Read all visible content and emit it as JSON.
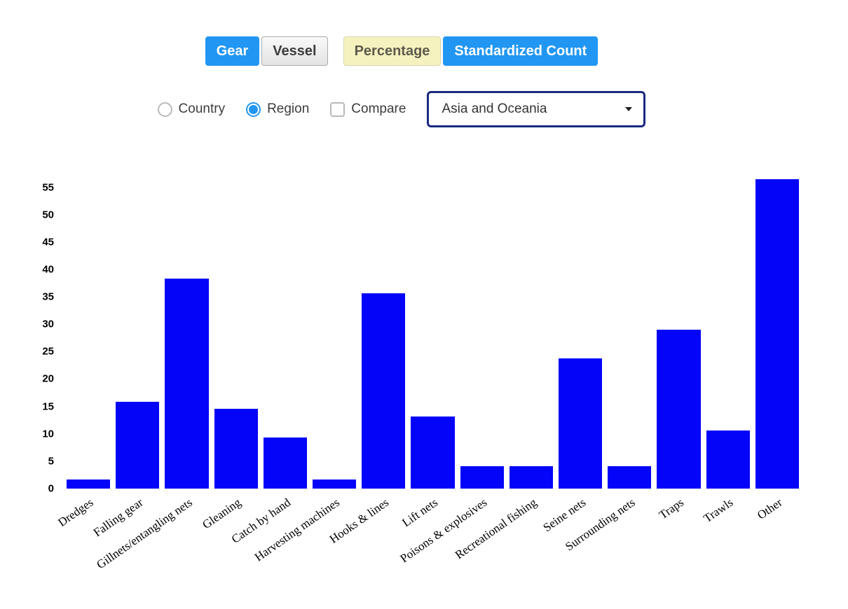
{
  "controls": {
    "toggle_group_1": [
      {
        "label": "Gear",
        "state": "active"
      },
      {
        "label": "Vessel",
        "state": "inactive"
      }
    ],
    "toggle_group_2": [
      {
        "label": "Percentage",
        "state": "inactive"
      },
      {
        "label": "Standardized Count",
        "state": "active"
      }
    ],
    "radio_country": {
      "label": "Country",
      "checked": false
    },
    "radio_region": {
      "label": "Region",
      "checked": true
    },
    "checkbox_compare": {
      "label": "Compare",
      "checked": false
    },
    "region_select": {
      "value": "Asia and Oceania"
    }
  },
  "colors": {
    "accent_blue": "#2196f3",
    "bar_blue": "#0404f8",
    "button_yellow": "#f5f2c0",
    "select_border": "#1a2980"
  },
  "chart_data": {
    "type": "bar",
    "title": "",
    "xlabel": "",
    "ylabel": "",
    "categories": [
      "Dredges",
      "Falling gear",
      "Gillnets/entangling nets",
      "Gleaning",
      "Catch by hand",
      "Harvesting machines",
      "Hooks & lines",
      "Lift nets",
      "Poisons & explosives",
      "Recreational fishing",
      "Seine nets",
      "Surrounding nets",
      "Traps",
      "Trawls",
      "Other"
    ],
    "values": [
      1.6,
      15.9,
      38.3,
      14.6,
      9.3,
      1.6,
      35.6,
      13.2,
      4.1,
      4.1,
      23.8,
      4.1,
      29.0,
      10.6,
      56.5
    ],
    "yticks": [
      0,
      5,
      10,
      15,
      20,
      25,
      30,
      35,
      40,
      45,
      50,
      55
    ],
    "ylim": [
      0,
      57.5
    ],
    "grid": false,
    "legend": null,
    "bar_color": "#0404f8"
  }
}
